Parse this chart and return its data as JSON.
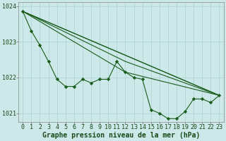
{
  "title": "Graphe pression niveau de la mer (hPa)",
  "background_color": "#cce8e8",
  "grid_color": "#aad0d0",
  "line_color": "#1a5c1a",
  "xlim": [
    -0.5,
    23.5
  ],
  "ylim": [
    1020.75,
    1024.1
  ],
  "yticks": [
    1021,
    1022,
    1023,
    1024
  ],
  "xticks": [
    0,
    1,
    2,
    3,
    4,
    5,
    6,
    7,
    8,
    9,
    10,
    11,
    12,
    13,
    14,
    15,
    16,
    17,
    18,
    19,
    20,
    21,
    22,
    23
  ],
  "series_main": {
    "x": [
      0,
      1,
      2,
      3,
      4,
      5,
      6,
      7,
      8,
      9,
      10,
      11,
      12,
      13,
      14,
      15,
      16,
      17,
      18,
      19,
      20,
      21,
      22,
      23
    ],
    "y": [
      1023.85,
      1023.3,
      1022.9,
      1022.45,
      1021.95,
      1021.75,
      1021.75,
      1021.95,
      1021.85,
      1021.95,
      1021.95,
      1022.45,
      1022.15,
      1022.0,
      1021.95,
      1021.1,
      1021.0,
      1020.85,
      1020.85,
      1021.05,
      1021.4,
      1021.4,
      1021.3,
      1021.5
    ]
  },
  "series_trend": [
    {
      "x": [
        0,
        23
      ],
      "y": [
        1023.85,
        1021.5
      ]
    },
    {
      "x": [
        0,
        23
      ],
      "y": [
        1023.85,
        1021.5
      ]
    },
    {
      "x": [
        0,
        12,
        23
      ],
      "y": [
        1023.85,
        1022.45,
        1021.5
      ]
    },
    {
      "x": [
        0,
        12,
        23
      ],
      "y": [
        1023.85,
        1022.15,
        1021.5
      ]
    }
  ],
  "tick_fontsize": 6,
  "title_fontsize": 7,
  "marker": "D",
  "markersize": 2.2,
  "linewidth": 0.8
}
